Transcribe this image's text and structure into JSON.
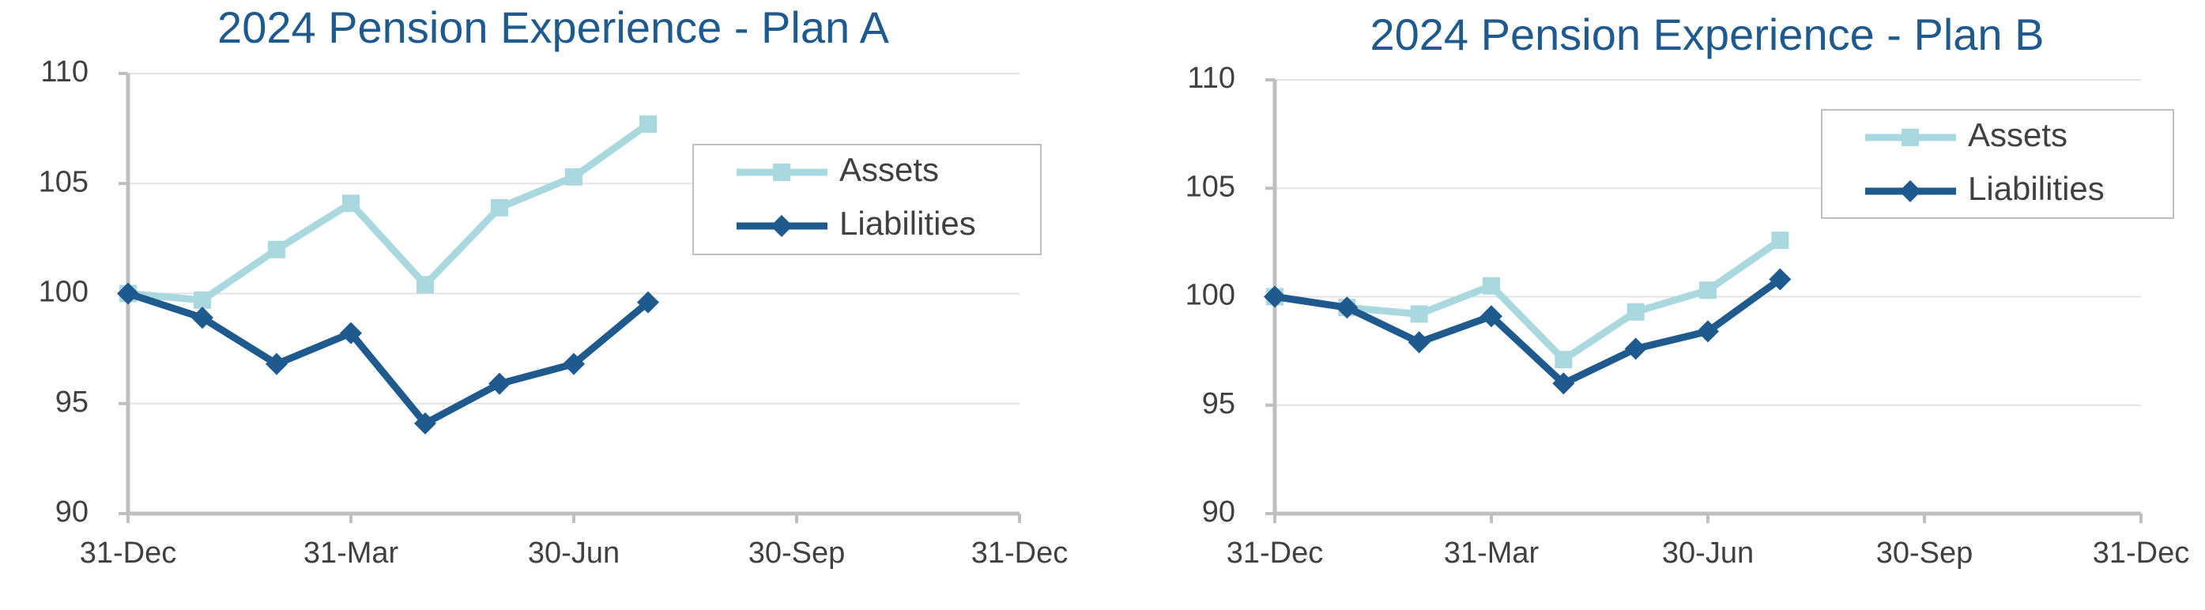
{
  "chart_data": [
    {
      "type": "line",
      "title": "2024 Pension Experience - Plan A",
      "categories": [
        "31-Dec",
        null,
        null,
        "31-Mar",
        null,
        null,
        "30-Jun",
        null,
        null,
        "30-Sep",
        null,
        null,
        "31-Dec"
      ],
      "series": [
        {
          "name": "Assets",
          "color": "#a9d8df",
          "marker": "square",
          "values": [
            100,
            99.7,
            102,
            104.1,
            100.4,
            103.9,
            105.3,
            107.7,
            null,
            null,
            null,
            null,
            null
          ]
        },
        {
          "name": "Liabilities",
          "color": "#1f5a8e",
          "marker": "diamond",
          "values": [
            100,
            98.9,
            96.8,
            98.2,
            94.1,
            95.9,
            96.8,
            99.6,
            null,
            null,
            null,
            null,
            null
          ]
        }
      ],
      "ylim": [
        90,
        110
      ],
      "yticks": [
        90,
        95,
        100,
        105,
        110
      ],
      "grid": true,
      "legend": "upper right"
    },
    {
      "type": "line",
      "title": "2024 Pension Experience - Plan B",
      "categories": [
        "31-Dec",
        null,
        null,
        "31-Mar",
        null,
        null,
        "30-Jun",
        null,
        null,
        "30-Sep",
        null,
        null,
        "31-Dec"
      ],
      "series": [
        {
          "name": "Assets",
          "color": "#a9d8df",
          "marker": "square",
          "values": [
            100,
            99.5,
            99.2,
            100.5,
            97.1,
            99.3,
            100.3,
            102.6,
            null,
            null,
            null,
            null,
            null
          ]
        },
        {
          "name": "Liabilities",
          "color": "#1f5a8e",
          "marker": "diamond",
          "values": [
            100,
            99.5,
            97.9,
            99.1,
            96.0,
            97.6,
            98.4,
            100.8,
            null,
            null,
            null,
            null,
            null
          ]
        }
      ],
      "ylim": [
        90,
        110
      ],
      "yticks": [
        90,
        95,
        100,
        105,
        110
      ],
      "grid": true,
      "legend": "upper right"
    }
  ]
}
